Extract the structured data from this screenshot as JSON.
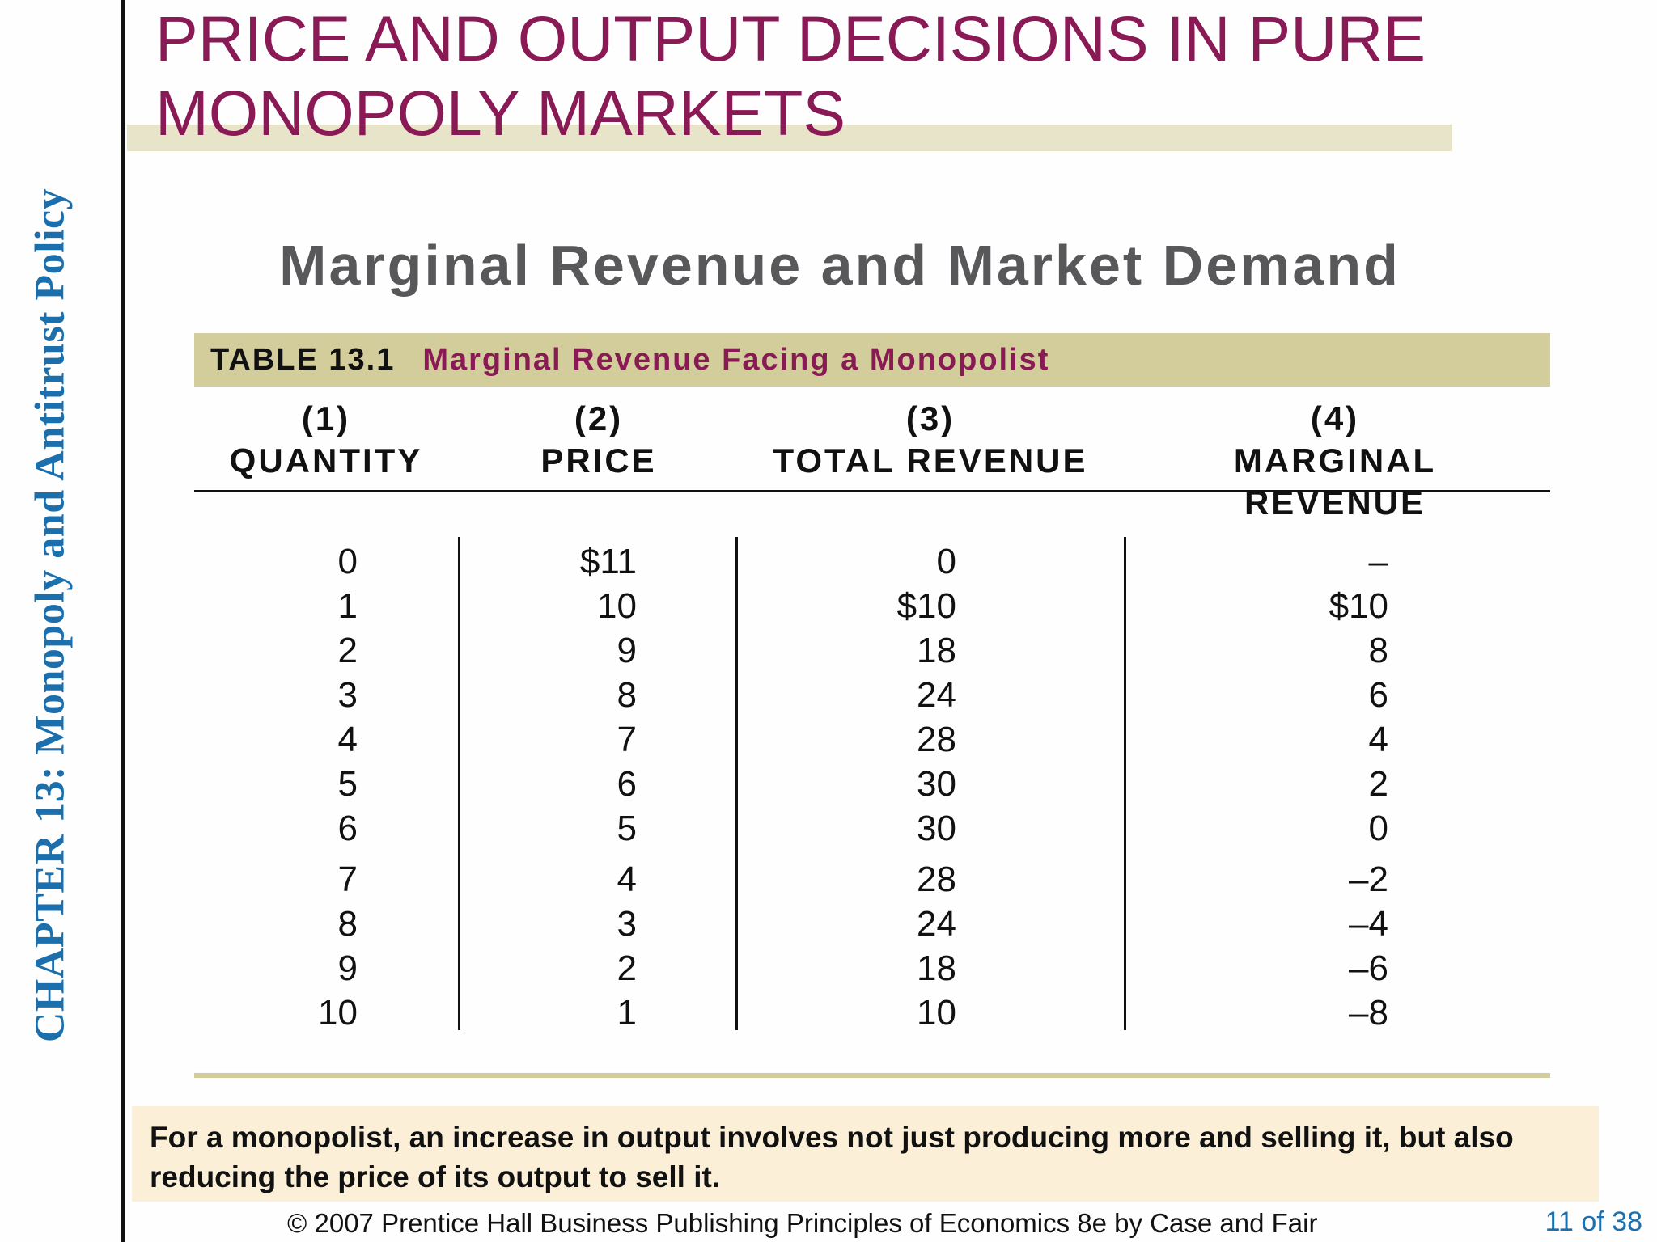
{
  "chapter_label": "CHAPTER 13:  Monopoly and Antitrust Policy",
  "title_lines": [
    "PRICE AND OUTPUT DECISIONS IN PURE",
    "MONOPOLY MARKETS"
  ],
  "subtitle": "Marginal Revenue and Market Demand",
  "table": {
    "number": "TABLE 13.1",
    "caption": "Marginal Revenue Facing a Monopolist",
    "columns": [
      {
        "num": "(1)",
        "label": "QUANTITY"
      },
      {
        "num": "(2)",
        "label": "PRICE"
      },
      {
        "num": "(3)",
        "label": "TOTAL REVENUE"
      },
      {
        "num": "(4)",
        "label": "MARGINAL REVENUE"
      }
    ],
    "rows": [
      [
        "0",
        "$11",
        "0",
        "–"
      ],
      [
        "1",
        "10",
        "$10",
        "$10"
      ],
      [
        "2",
        "9",
        "18",
        "8"
      ],
      [
        "3",
        "8",
        "24",
        "6"
      ],
      [
        "4",
        "7",
        "28",
        "4"
      ],
      [
        "5",
        "6",
        "30",
        "2"
      ],
      [
        "6",
        "5",
        "30",
        "0"
      ],
      [
        "7",
        "4",
        "28",
        "–2"
      ],
      [
        "8",
        "3",
        "24",
        "–4"
      ],
      [
        "9",
        "2",
        "18",
        "–6"
      ],
      [
        "10",
        "1",
        "10",
        "–8"
      ]
    ]
  },
  "note": "For a monopolist, an increase in output involves not just producing more and selling it, but also reducing the price of its output to sell it.",
  "footer": "© 2007 Prentice Hall Business Publishing   Principles of Economics 8e by Case and Fair",
  "page": "11 of 38",
  "colors": {
    "title": "#8a1a55",
    "chapter": "#1c6fad",
    "table_bar": "#d3cd9b",
    "note_bg": "#fcefd8"
  }
}
